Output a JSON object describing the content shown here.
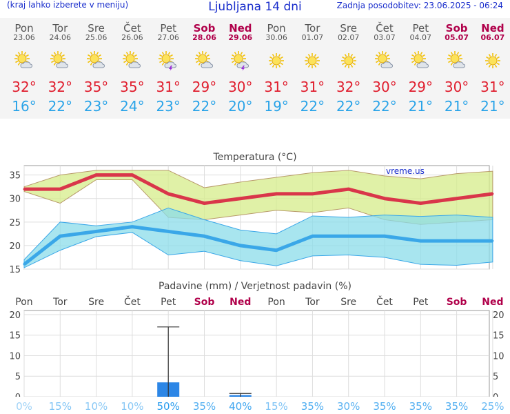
{
  "header": {
    "menu_hint": "(kraj lahko izberete v meniju)",
    "title": "Ljubljana 14 dni",
    "last_update": "Zadnja posodobitev: 23.06.2025 - 06:24"
  },
  "days": [
    {
      "name": "Pon",
      "date": "23.06",
      "weekend": false,
      "icon": "sun-cloud-icon",
      "tmax_label": "32°",
      "tmin_label": "16°"
    },
    {
      "name": "Tor",
      "date": "24.06",
      "weekend": false,
      "icon": "sun-cloud-icon",
      "tmax_label": "32°",
      "tmin_label": "22°"
    },
    {
      "name": "Sre",
      "date": "25.06",
      "weekend": false,
      "icon": "sun-cloud-icon",
      "tmax_label": "35°",
      "tmin_label": "23°"
    },
    {
      "name": "Čet",
      "date": "26.06",
      "weekend": false,
      "icon": "sun-cloud-icon",
      "tmax_label": "35°",
      "tmin_label": "24°"
    },
    {
      "name": "Pet",
      "date": "27.06",
      "weekend": false,
      "icon": "sun-storm-icon",
      "tmax_label": "31°",
      "tmin_label": "23°"
    },
    {
      "name": "Sob",
      "date": "28.06",
      "weekend": true,
      "icon": "sun-cloud-icon",
      "tmax_label": "29°",
      "tmin_label": "22°"
    },
    {
      "name": "Ned",
      "date": "29.06",
      "weekend": true,
      "icon": "sun-storm-icon",
      "tmax_label": "30°",
      "tmin_label": "20°"
    },
    {
      "name": "Pon",
      "date": "30.06",
      "weekend": false,
      "icon": "sun-icon",
      "tmax_label": "31°",
      "tmin_label": "19°"
    },
    {
      "name": "Tor",
      "date": "01.07",
      "weekend": false,
      "icon": "sun-icon",
      "tmax_label": "31°",
      "tmin_label": "22°"
    },
    {
      "name": "Sre",
      "date": "02.07",
      "weekend": false,
      "icon": "sun-icon",
      "tmax_label": "32°",
      "tmin_label": "22°"
    },
    {
      "name": "Čet",
      "date": "03.07",
      "weekend": false,
      "icon": "sun-cloud-icon",
      "tmax_label": "30°",
      "tmin_label": "22°"
    },
    {
      "name": "Pet",
      "date": "04.07",
      "weekend": false,
      "icon": "sun-cloud-icon",
      "tmax_label": "29°",
      "tmin_label": "21°"
    },
    {
      "name": "Sob",
      "date": "05.07",
      "weekend": true,
      "icon": "sun-cloud-icon",
      "tmax_label": "30°",
      "tmin_label": "21°"
    },
    {
      "name": "Ned",
      "date": "06.07",
      "weekend": true,
      "icon": "sun-icon",
      "tmax_label": "31°",
      "tmin_label": "21°"
    }
  ],
  "chart_data": [
    {
      "type": "line",
      "title": "Temperatura (°C)",
      "watermark": "vreme.us",
      "categories": [
        "Pon",
        "Tor",
        "Sre",
        "Čet",
        "Pet",
        "Sob",
        "Ned",
        "Pon",
        "Tor",
        "Sre",
        "Čet",
        "Pet",
        "Sob",
        "Ned"
      ],
      "ylim": [
        15,
        37
      ],
      "yticks": [
        15,
        20,
        25,
        30,
        35
      ],
      "grid": true,
      "series": [
        {
          "name": "max",
          "color": "#d9364a",
          "values": [
            32,
            32,
            35,
            35,
            31,
            29,
            30,
            31,
            31,
            32,
            30,
            29,
            30,
            31
          ],
          "band_high": [
            32.5,
            35,
            36,
            36,
            36,
            32.3,
            33.5,
            34.5,
            35.5,
            36,
            34.8,
            34.2,
            35.3,
            35.8
          ],
          "band_low": [
            31.5,
            29,
            34,
            34,
            26,
            25.5,
            26.5,
            27.5,
            27,
            28,
            25.5,
            24.5,
            25,
            25.5
          ]
        },
        {
          "name": "min",
          "color": "#3aa7e8",
          "values": [
            16,
            22,
            23,
            24,
            23,
            22,
            20,
            19,
            22,
            22,
            22,
            21,
            21,
            21
          ],
          "band_high": [
            17,
            25,
            24.2,
            25,
            28,
            25.5,
            23.3,
            22.5,
            26.3,
            26,
            26.5,
            26.2,
            26.5,
            26
          ],
          "band_low": [
            15.3,
            19,
            21.9,
            22.8,
            18,
            18.8,
            16.8,
            15.7,
            17.8,
            18,
            17.5,
            16,
            15.8,
            16.5
          ]
        }
      ]
    },
    {
      "type": "bar",
      "title": "Padavine (mm) / Verjetnost padavin (%)",
      "categories": [
        "Pon",
        "Tor",
        "Sre",
        "Čet",
        "Pet",
        "Sob",
        "Ned",
        "Pon",
        "Tor",
        "Sre",
        "Čet",
        "Pet",
        "Sob",
        "Ned"
      ],
      "weekend": [
        false,
        false,
        false,
        false,
        false,
        true,
        true,
        false,
        false,
        false,
        false,
        false,
        true,
        true
      ],
      "ylim": [
        0,
        21
      ],
      "yticks": [
        0,
        5,
        10,
        15,
        20
      ],
      "values": [
        0,
        0,
        0,
        0,
        3.5,
        0,
        0.4,
        0,
        0,
        0,
        0,
        0,
        0,
        0
      ],
      "error_high": [
        0,
        0,
        0,
        0,
        17,
        0,
        0.8,
        0,
        0,
        0,
        0,
        0,
        0,
        0
      ],
      "bar_color": "#2c86e6",
      "probability_labels": [
        "0%",
        "15%",
        "10%",
        "10%",
        "50%",
        "35%",
        "40%",
        "15%",
        "35%",
        "30%",
        "35%",
        "35%",
        "35%",
        "25%"
      ],
      "probability_values": [
        0,
        15,
        10,
        10,
        50,
        35,
        40,
        15,
        35,
        30,
        35,
        35,
        35,
        25
      ]
    }
  ]
}
